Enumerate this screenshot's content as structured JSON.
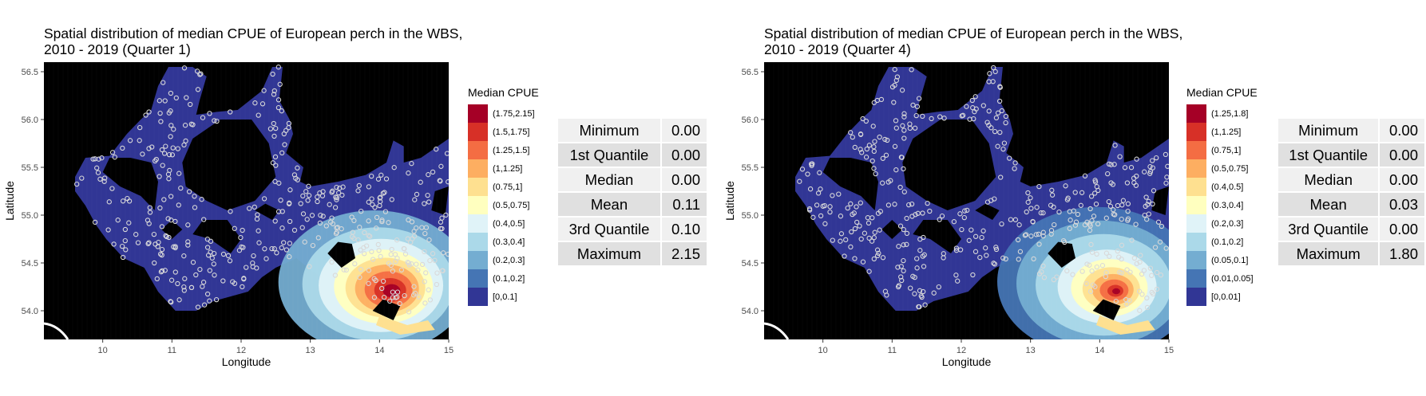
{
  "panels": [
    {
      "title_line1": "Spatial distribution of median CPUE of European perch in the WBS,",
      "title_line2": "2010 - 2019 (Quarter 1)",
      "xlabel": "Longitude",
      "ylabel": "Latitude",
      "legend_title": "Median CPUE",
      "legend": [
        "(1.75,2.15]",
        "(1.5,1.75]",
        "(1.25,1.5]",
        "(1,1.25]",
        "(0.75,1]",
        "(0.5,0.75]",
        "(0.4,0.5]",
        "(0.3,0.4]",
        "(0.2,0.3]",
        "(0.1,0.2]",
        "[0,0.1]"
      ],
      "stats": [
        {
          "label": "Minimum",
          "value": "0.00"
        },
        {
          "label": "1st Quantile",
          "value": "0.00"
        },
        {
          "label": "Median",
          "value": "0.00"
        },
        {
          "label": "Mean",
          "value": "0.11"
        },
        {
          "label": "3rd Quantile",
          "value": "0.10"
        },
        {
          "label": "Maximum",
          "value": "2.15"
        }
      ]
    },
    {
      "title_line1": "Spatial distribution of median CPUE of European perch in the WBS,",
      "title_line2": "2010 - 2019 (Quarter 4)",
      "xlabel": "Longitude",
      "ylabel": "Latitude",
      "legend_title": "Median CPUE",
      "legend": [
        "(1.25,1.8]",
        "(1,1.25]",
        "(0.75,1]",
        "(0.5,0.75]",
        "(0.4,0.5]",
        "(0.3,0.4]",
        "(0.2,0.3]",
        "(0.1,0.2]",
        "(0.05,0.1]",
        "(0.01,0.05]",
        "[0,0.01]"
      ],
      "stats": [
        {
          "label": "Minimum",
          "value": "0.00"
        },
        {
          "label": "1st Quantile",
          "value": "0.00"
        },
        {
          "label": "Median",
          "value": "0.00"
        },
        {
          "label": "Mean",
          "value": "0.03"
        },
        {
          "label": "3rd Quantile",
          "value": "0.00"
        },
        {
          "label": "Maximum",
          "value": "1.80"
        }
      ]
    }
  ],
  "chart_data": [
    {
      "type": "heatmap",
      "title": "Spatial distribution of median CPUE of European perch in the WBS, 2010 - 2019 (Quarter 1)",
      "xlabel": "Longitude",
      "ylabel": "Latitude",
      "xlim": [
        9.15,
        15
      ],
      "ylim": [
        53.7,
        56.6
      ],
      "x_ticks": [
        "10",
        "11",
        "12",
        "13",
        "14",
        "15"
      ],
      "y_ticks": [
        "54.0",
        "54.5",
        "55.0",
        "55.5",
        "56.0",
        "56.5"
      ],
      "legend_title": "Median CPUE",
      "classes": [
        "(1.75,2.15]",
        "(1.5,1.75]",
        "(1.25,1.5]",
        "(1,1.25]",
        "(0.75,1]",
        "(0.5,0.75]",
        "(0.4,0.5]",
        "(0.3,0.4]",
        "(0.2,0.3]",
        "(0.1,0.2]",
        "[0,0.1]"
      ],
      "class_colors": [
        "#a50026",
        "#d73027",
        "#f46d43",
        "#fdae61",
        "#fee090",
        "#ffffbf",
        "#e0f3f8",
        "#abd9e9",
        "#74add1",
        "#4575b4",
        "#313695"
      ],
      "hotspot": {
        "lon": 14.2,
        "lat": 54.2,
        "value": 2.15
      },
      "summary": {
        "Minimum": 0.0,
        "1st Quantile": 0.0,
        "Median": 0.0,
        "Mean": 0.11,
        "3rd Quantile": 0.1,
        "Maximum": 2.15
      }
    },
    {
      "type": "heatmap",
      "title": "Spatial distribution of median CPUE of European perch in the WBS, 2010 - 2019 (Quarter 4)",
      "xlabel": "Longitude",
      "ylabel": "Latitude",
      "xlim": [
        9.15,
        15
      ],
      "ylim": [
        53.7,
        56.6
      ],
      "x_ticks": [
        "10",
        "11",
        "12",
        "13",
        "14",
        "15"
      ],
      "y_ticks": [
        "54.0",
        "54.5",
        "55.0",
        "55.5",
        "56.0",
        "56.5"
      ],
      "legend_title": "Median CPUE",
      "classes": [
        "(1.25,1.8]",
        "(1,1.25]",
        "(0.75,1]",
        "(0.5,0.75]",
        "(0.4,0.5]",
        "(0.3,0.4]",
        "(0.2,0.3]",
        "(0.1,0.2]",
        "(0.05,0.1]",
        "(0.01,0.05]",
        "[0,0.01]"
      ],
      "class_colors": [
        "#a50026",
        "#d73027",
        "#f46d43",
        "#fdae61",
        "#fee090",
        "#ffffbf",
        "#e0f3f8",
        "#abd9e9",
        "#74add1",
        "#4575b4",
        "#313695"
      ],
      "hotspot": {
        "lon": 14.25,
        "lat": 54.2,
        "value": 1.8
      },
      "summary": {
        "Minimum": 0.0,
        "1st Quantile": 0.0,
        "Median": 0.0,
        "Mean": 0.03,
        "3rd Quantile": 0.0,
        "Maximum": 1.8
      }
    }
  ]
}
